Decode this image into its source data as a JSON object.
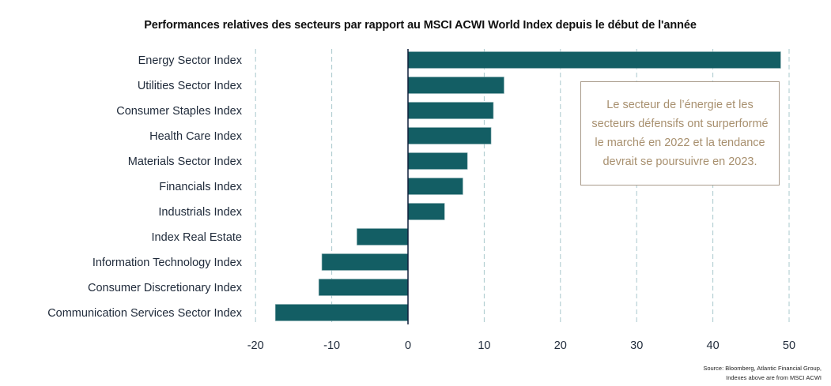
{
  "colors": {
    "bar": "#135e64",
    "gridline": "#a9c8cc",
    "zero_axis": "#0e1e3a",
    "callout_text": "#a8906f",
    "callout_border": "#a89a8a"
  },
  "chart_data": {
    "type": "bar",
    "orientation": "horizontal",
    "title": "Performances relatives des secteurs par rapport au MSCI ACWI World Index depuis le début de l'année",
    "xlabel": "",
    "ylabel": "",
    "xlim": [
      -20,
      50
    ],
    "x_ticks": [
      -20,
      -10,
      0,
      10,
      20,
      30,
      40,
      50
    ],
    "x_tick_labels": [
      "-20",
      "-10",
      "0",
      "10",
      "20",
      "30",
      "40",
      "50"
    ],
    "grid": "vertical dashed",
    "legend": "none",
    "categories": [
      "Energy Sector Index",
      "Utilities Sector Index",
      "Consumer Staples Index",
      "Health Care Index",
      "Materials Sector Index",
      "Financials Index",
      "Industrials Index",
      "Index Real Estate",
      "Information Technology Index",
      "Consumer Discretionary Index",
      "Communication Services Sector Index"
    ],
    "values": [
      48.9,
      12.6,
      11.2,
      10.9,
      7.8,
      7.2,
      4.8,
      -6.7,
      -11.3,
      -11.7,
      -17.4
    ],
    "annotations": [
      "Le secteur de l’énergie et les secteurs défensifs ont surperformé le marché en 2022 et la tendance devrait se poursuivre en 2023."
    ]
  },
  "callout": {
    "text": "Le secteur de l’énergie et les secteurs défensifs ont surperformé le marché en 2022 et la tendance devrait se poursuivre en 2023."
  },
  "source": {
    "line1": "Source: Bloomberg, Atlantic Financial Group,",
    "line2": "Indexes above are from MSCI ACWI"
  }
}
